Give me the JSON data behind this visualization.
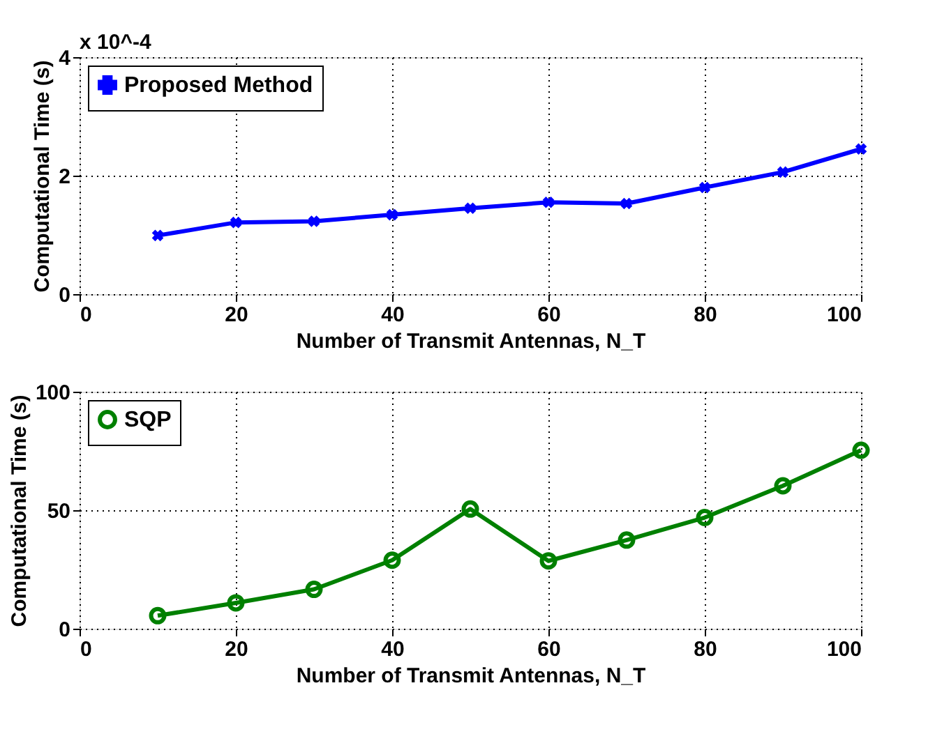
{
  "chart_data": [
    {
      "type": "line",
      "xlabel": "Number of Transmit Antennas, N_T",
      "ylabel": "Computational Time (s)",
      "annotations": [
        "x 10^-4"
      ],
      "x": [
        10,
        20,
        30,
        40,
        50,
        60,
        70,
        80,
        90,
        100
      ],
      "series": [
        {
          "name": "Proposed Method",
          "color": "#0000ff",
          "values": [
            0.99,
            1.21,
            1.23,
            1.34,
            1.45,
            1.55,
            1.53,
            1.8,
            2.06,
            2.45
          ]
        }
      ],
      "xlim": [
        0,
        100
      ],
      "xticks": [
        0,
        20,
        40,
        60,
        80,
        100
      ],
      "ylim": [
        0,
        4
      ],
      "yticks": [
        0,
        2,
        4
      ],
      "grid": true,
      "legend": "top left",
      "marker": "cross",
      "line_style": "solid"
    },
    {
      "type": "line",
      "xlabel": "Number of Transmit Antennas, N_T",
      "ylabel": "Computational Time (s)",
      "x": [
        10,
        20,
        30,
        40,
        50,
        60,
        70,
        80,
        90,
        100
      ],
      "series": [
        {
          "name": "SQP",
          "color": "#008000",
          "values": [
            5.5,
            10.9,
            16.6,
            28.9,
            50.5,
            28.6,
            37.4,
            46.9,
            60.3,
            75.3
          ]
        }
      ],
      "xlim": [
        0,
        100
      ],
      "xticks": [
        0,
        20,
        40,
        60,
        80,
        100
      ],
      "ylim": [
        0,
        100
      ],
      "yticks": [
        0,
        50,
        100
      ],
      "grid": true,
      "legend": "top left",
      "marker": "circle",
      "line_style": "solid"
    }
  ]
}
